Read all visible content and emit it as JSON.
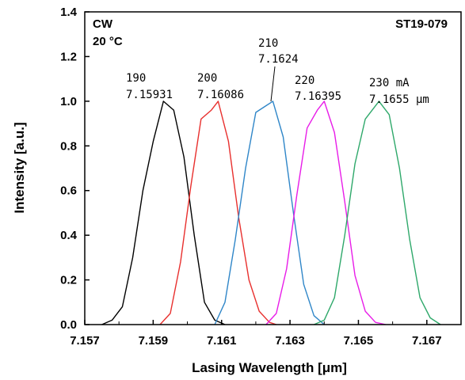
{
  "chart_data": {
    "type": "line",
    "title": "",
    "xlabel": "Lasing Wavelength [μm]",
    "ylabel": "Intensity  [a.u.]",
    "xlim": [
      7.157,
      7.168
    ],
    "ylim": [
      0,
      1.4
    ],
    "x_ticks": [
      "7.157",
      "7.159",
      "7.161",
      "7.163",
      "7.165",
      "7.167"
    ],
    "y_ticks": [
      "0.0",
      "0.2",
      "0.4",
      "0.6",
      "0.8",
      "1.0",
      "1.2",
      "1.4"
    ],
    "grid": false,
    "annotations": {
      "condition_mode": "CW",
      "condition_temp": "20 °C",
      "sample_id": "ST19-079"
    },
    "series": [
      {
        "color": "#000000",
        "current_label": "190",
        "wavelength_label": "7.15931",
        "x": [
          7.1575,
          7.1578,
          7.1581,
          7.1584,
          7.1587,
          7.159,
          7.1593,
          7.1596,
          7.1599,
          7.1602,
          7.1605,
          7.1608,
          7.1611
        ],
        "y": [
          0.0,
          0.02,
          0.08,
          0.3,
          0.6,
          0.82,
          1.0,
          0.96,
          0.75,
          0.4,
          0.1,
          0.02,
          0.0
        ]
      },
      {
        "color": "#e8302e",
        "current_label": "200",
        "wavelength_label": "7.16086",
        "x": [
          7.1592,
          7.1595,
          7.1598,
          7.1601,
          7.1604,
          7.1607,
          7.1609,
          7.1612,
          7.1615,
          7.1618,
          7.1621,
          7.1624,
          7.1626
        ],
        "y": [
          0.0,
          0.05,
          0.28,
          0.62,
          0.92,
          0.96,
          1.0,
          0.82,
          0.48,
          0.2,
          0.06,
          0.01,
          0.0
        ]
      },
      {
        "color": "#2f86c8",
        "current_label": "210",
        "wavelength_label": "7.1624",
        "x": [
          7.1608,
          7.1611,
          7.1614,
          7.1617,
          7.162,
          7.1623,
          7.1625,
          7.1628,
          7.1631,
          7.1634,
          7.1637,
          7.164
        ],
        "y": [
          0.0,
          0.1,
          0.38,
          0.7,
          0.95,
          0.98,
          1.0,
          0.84,
          0.5,
          0.18,
          0.04,
          0.0
        ]
      },
      {
        "color": "#e81ce8",
        "current_label": "220",
        "wavelength_label": "7.16395",
        "x": [
          7.1623,
          7.1626,
          7.1629,
          7.1632,
          7.1635,
          7.1638,
          7.164,
          7.1643,
          7.1646,
          7.1649,
          7.1652,
          7.1655,
          7.1658
        ],
        "y": [
          0.0,
          0.05,
          0.25,
          0.58,
          0.88,
          0.96,
          1.0,
          0.86,
          0.55,
          0.22,
          0.06,
          0.01,
          0.0
        ]
      },
      {
        "color": "#2ea86a",
        "current_label": "230 mA",
        "wavelength_label": "7.1655  μm",
        "x": [
          7.1637,
          7.164,
          7.1643,
          7.1646,
          7.1649,
          7.1652,
          7.1656,
          7.1659,
          7.1662,
          7.1665,
          7.1668,
          7.1671,
          7.1674
        ],
        "y": [
          0.0,
          0.02,
          0.12,
          0.4,
          0.72,
          0.92,
          1.0,
          0.94,
          0.7,
          0.38,
          0.12,
          0.03,
          0.0
        ]
      }
    ]
  }
}
